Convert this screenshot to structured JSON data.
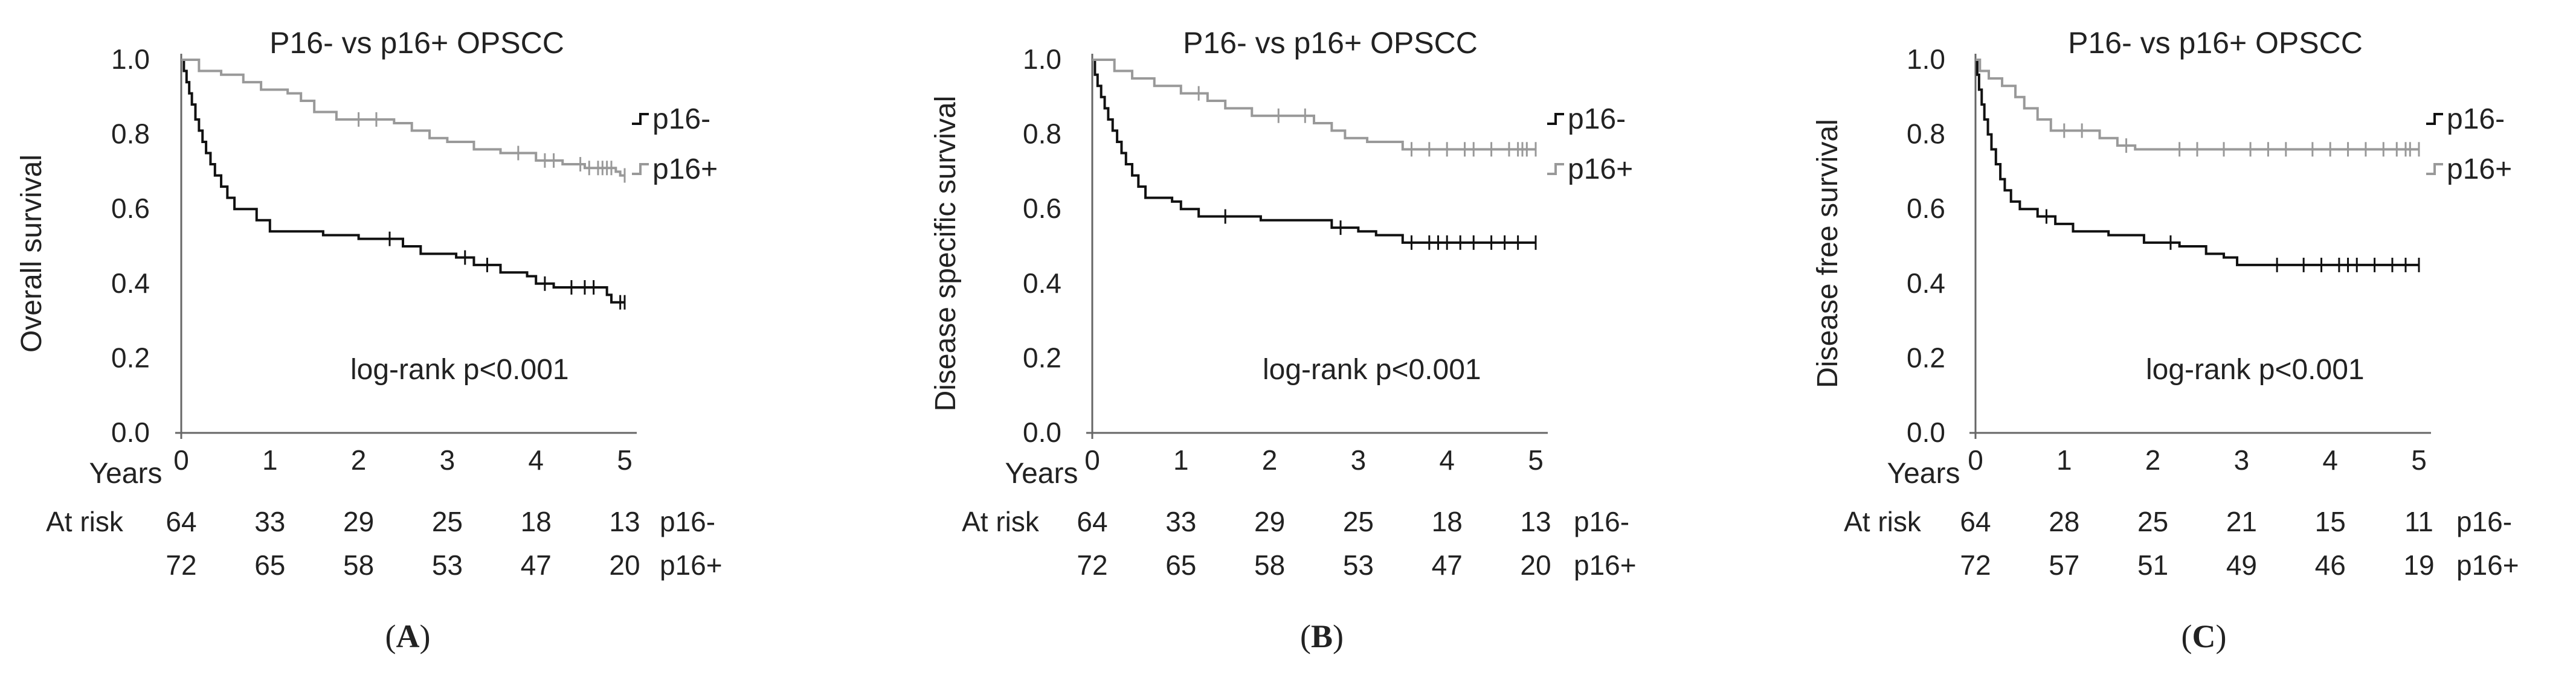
{
  "colors": {
    "p16_neg": "#111111",
    "p16_pos": "#999999",
    "axis": "#666666",
    "text": "#222222"
  },
  "chart_data": [
    {
      "type": "line",
      "panel_label": "A",
      "title": "P16- vs p16+ OPSCC",
      "ylabel": "Overall survival",
      "xlabel": "Years",
      "annotation": "log-rank p<0.001",
      "ylim": [
        0.0,
        1.0
      ],
      "xlim": [
        0,
        5
      ],
      "yticks": [
        "0.0",
        "0.2",
        "0.4",
        "0.6",
        "0.8",
        "1.0"
      ],
      "xticks": [
        "0",
        "1",
        "2",
        "3",
        "4",
        "5"
      ],
      "at_risk_label": "At risk",
      "series": [
        {
          "name": "p16-",
          "color": "#111111",
          "steps": [
            [
              0,
              1.0
            ],
            [
              0.03,
              0.97
            ],
            [
              0.06,
              0.94
            ],
            [
              0.09,
              0.91
            ],
            [
              0.12,
              0.88
            ],
            [
              0.16,
              0.84
            ],
            [
              0.2,
              0.81
            ],
            [
              0.24,
              0.78
            ],
            [
              0.28,
              0.75
            ],
            [
              0.33,
              0.72
            ],
            [
              0.38,
              0.69
            ],
            [
              0.45,
              0.66
            ],
            [
              0.52,
              0.63
            ],
            [
              0.6,
              0.6
            ],
            [
              0.85,
              0.57
            ],
            [
              1.0,
              0.54
            ],
            [
              1.6,
              0.53
            ],
            [
              2.0,
              0.52
            ],
            [
              2.5,
              0.5
            ],
            [
              2.7,
              0.48
            ],
            [
              3.1,
              0.47
            ],
            [
              3.3,
              0.45
            ],
            [
              3.6,
              0.43
            ],
            [
              3.9,
              0.42
            ],
            [
              4.0,
              0.4
            ],
            [
              4.2,
              0.39
            ],
            [
              4.8,
              0.37
            ],
            [
              4.85,
              0.35
            ],
            [
              5.0,
              0.35
            ]
          ],
          "censor": [
            2.35,
            3.2,
            3.45,
            4.1,
            4.4,
            4.55,
            4.65,
            4.95,
            5.0
          ],
          "at_risk": [
            "64",
            "33",
            "29",
            "25",
            "18",
            "13"
          ]
        },
        {
          "name": "p16+",
          "color": "#999999",
          "steps": [
            [
              0,
              1.0
            ],
            [
              0.2,
              0.97
            ],
            [
              0.45,
              0.96
            ],
            [
              0.7,
              0.94
            ],
            [
              0.9,
              0.92
            ],
            [
              1.2,
              0.91
            ],
            [
              1.35,
              0.89
            ],
            [
              1.5,
              0.86
            ],
            [
              1.75,
              0.84
            ],
            [
              2.4,
              0.83
            ],
            [
              2.6,
              0.81
            ],
            [
              2.8,
              0.79
            ],
            [
              3.0,
              0.78
            ],
            [
              3.3,
              0.76
            ],
            [
              3.6,
              0.75
            ],
            [
              4.0,
              0.73
            ],
            [
              4.3,
              0.72
            ],
            [
              4.55,
              0.71
            ],
            [
              4.9,
              0.7
            ],
            [
              4.95,
              0.69
            ],
            [
              5.0,
              0.69
            ]
          ],
          "censor": [
            2.0,
            2.2,
            3.8,
            4.1,
            4.2,
            4.5,
            4.6,
            4.7,
            4.75,
            4.8,
            4.85,
            5.0
          ],
          "at_risk": [
            "72",
            "65",
            "58",
            "53",
            "47",
            "20"
          ]
        }
      ]
    },
    {
      "type": "line",
      "panel_label": "B",
      "title": "P16- vs p16+ OPSCC",
      "ylabel": "Disease specific survival",
      "xlabel": "Years",
      "annotation": "log-rank p<0.001",
      "ylim": [
        0.0,
        1.0
      ],
      "xlim": [
        0,
        5
      ],
      "yticks": [
        "0.0",
        "0.2",
        "0.4",
        "0.6",
        "0.8",
        "1.0"
      ],
      "xticks": [
        "0",
        "1",
        "2",
        "3",
        "4",
        "5"
      ],
      "at_risk_label": "At risk",
      "series": [
        {
          "name": "p16-",
          "color": "#111111",
          "steps": [
            [
              0,
              1.0
            ],
            [
              0.03,
              0.96
            ],
            [
              0.06,
              0.93
            ],
            [
              0.1,
              0.9
            ],
            [
              0.14,
              0.87
            ],
            [
              0.18,
              0.84
            ],
            [
              0.23,
              0.81
            ],
            [
              0.28,
              0.78
            ],
            [
              0.33,
              0.75
            ],
            [
              0.38,
              0.72
            ],
            [
              0.45,
              0.69
            ],
            [
              0.52,
              0.66
            ],
            [
              0.6,
              0.63
            ],
            [
              0.9,
              0.62
            ],
            [
              1.0,
              0.6
            ],
            [
              1.2,
              0.58
            ],
            [
              1.9,
              0.57
            ],
            [
              2.7,
              0.55
            ],
            [
              3.0,
              0.54
            ],
            [
              3.2,
              0.53
            ],
            [
              3.5,
              0.51
            ],
            [
              5.0,
              0.51
            ]
          ],
          "censor": [
            1.5,
            2.8,
            3.6,
            3.8,
            3.9,
            4.0,
            4.15,
            4.3,
            4.5,
            4.65,
            4.8,
            5.0
          ],
          "at_risk": [
            "64",
            "33",
            "29",
            "25",
            "18",
            "13"
          ]
        },
        {
          "name": "p16+",
          "color": "#999999",
          "steps": [
            [
              0,
              1.0
            ],
            [
              0.25,
              0.97
            ],
            [
              0.45,
              0.95
            ],
            [
              0.7,
              0.93
            ],
            [
              1.0,
              0.91
            ],
            [
              1.3,
              0.89
            ],
            [
              1.5,
              0.87
            ],
            [
              1.8,
              0.85
            ],
            [
              2.5,
              0.83
            ],
            [
              2.7,
              0.81
            ],
            [
              2.85,
              0.79
            ],
            [
              3.1,
              0.78
            ],
            [
              3.5,
              0.76
            ],
            [
              5.0,
              0.76
            ]
          ],
          "censor": [
            1.2,
            2.1,
            2.4,
            3.6,
            3.8,
            4.0,
            4.2,
            4.3,
            4.5,
            4.7,
            4.8,
            4.85,
            4.9,
            5.0
          ],
          "at_risk": [
            "72",
            "65",
            "58",
            "53",
            "47",
            "20"
          ]
        }
      ]
    },
    {
      "type": "line",
      "panel_label": "C",
      "title": "P16- vs p16+ OPSCC",
      "ylabel": "Disease free survival",
      "xlabel": "Years",
      "annotation": "log-rank p<0.001",
      "ylim": [
        0.0,
        1.0
      ],
      "xlim": [
        0,
        5
      ],
      "yticks": [
        "0.0",
        "0.2",
        "0.4",
        "0.6",
        "0.8",
        "1.0"
      ],
      "xticks": [
        "0",
        "1",
        "2",
        "3",
        "4",
        "5"
      ],
      "at_risk_label": "At risk",
      "series": [
        {
          "name": "p16-",
          "color": "#111111",
          "steps": [
            [
              0,
              1.0
            ],
            [
              0.02,
              0.96
            ],
            [
              0.04,
              0.92
            ],
            [
              0.07,
              0.88
            ],
            [
              0.1,
              0.84
            ],
            [
              0.14,
              0.8
            ],
            [
              0.18,
              0.76
            ],
            [
              0.23,
              0.72
            ],
            [
              0.28,
              0.68
            ],
            [
              0.33,
              0.65
            ],
            [
              0.4,
              0.62
            ],
            [
              0.5,
              0.6
            ],
            [
              0.7,
              0.58
            ],
            [
              0.9,
              0.56
            ],
            [
              1.1,
              0.54
            ],
            [
              1.5,
              0.53
            ],
            [
              1.9,
              0.51
            ],
            [
              2.3,
              0.5
            ],
            [
              2.6,
              0.48
            ],
            [
              2.8,
              0.47
            ],
            [
              2.95,
              0.45
            ],
            [
              5.0,
              0.45
            ]
          ],
          "censor": [
            0.8,
            2.2,
            3.4,
            3.7,
            3.9,
            4.1,
            4.2,
            4.3,
            4.5,
            4.7,
            4.85,
            5.0
          ],
          "at_risk": [
            "64",
            "28",
            "25",
            "21",
            "15",
            "11"
          ]
        },
        {
          "name": "p16+",
          "color": "#999999",
          "steps": [
            [
              0,
              1.0
            ],
            [
              0.05,
              0.97
            ],
            [
              0.15,
              0.95
            ],
            [
              0.3,
              0.93
            ],
            [
              0.45,
              0.9
            ],
            [
              0.55,
              0.87
            ],
            [
              0.7,
              0.84
            ],
            [
              0.85,
              0.81
            ],
            [
              1.4,
              0.79
            ],
            [
              1.6,
              0.77
            ],
            [
              1.8,
              0.76
            ],
            [
              5.0,
              0.76
            ]
          ],
          "censor": [
            1.0,
            1.2,
            1.7,
            2.3,
            2.5,
            2.8,
            3.1,
            3.3,
            3.5,
            3.8,
            4.0,
            4.2,
            4.4,
            4.6,
            4.75,
            4.85,
            4.9,
            5.0
          ],
          "at_risk": [
            "72",
            "57",
            "51",
            "49",
            "46",
            "19"
          ]
        }
      ]
    }
  ]
}
